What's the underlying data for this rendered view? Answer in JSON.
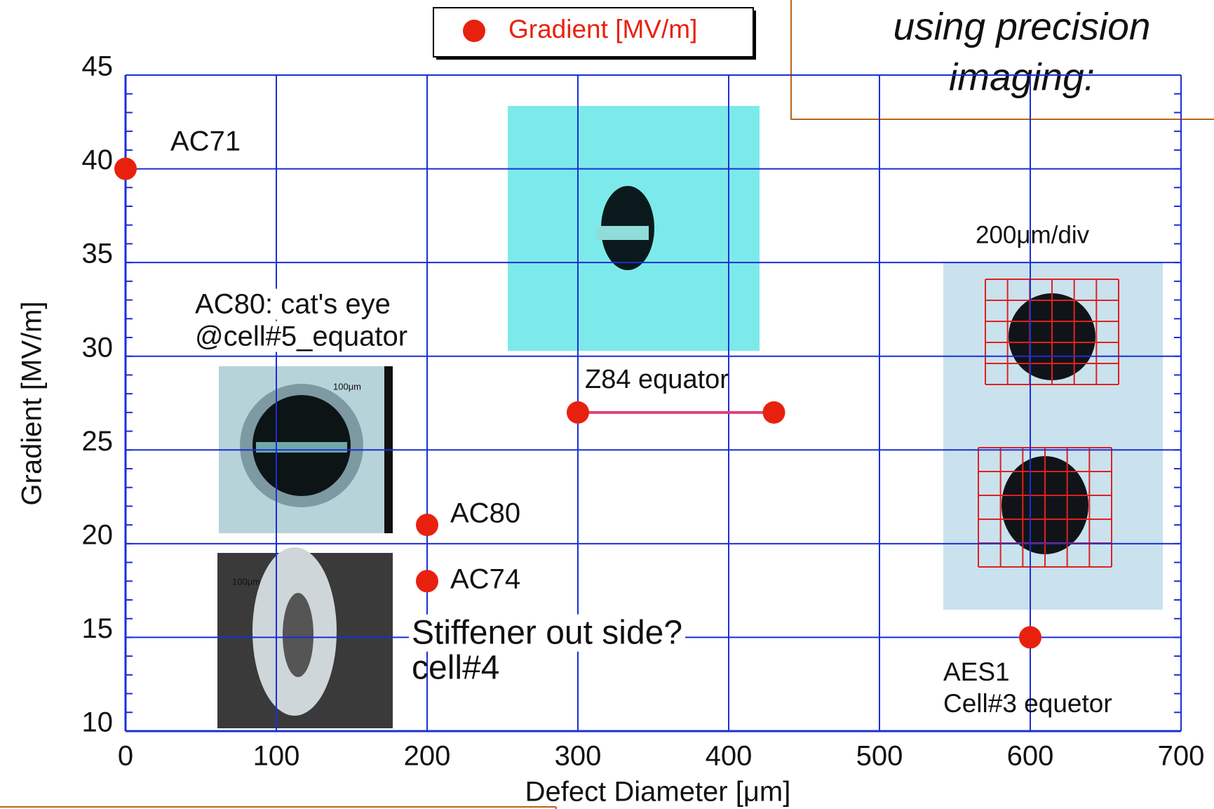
{
  "chart_data": {
    "type": "scatter",
    "xlabel": "Defect Diameter [μm]",
    "ylabel": "Gradient [MV/m]",
    "xlim": [
      0,
      700
    ],
    "ylim": [
      10,
      45
    ],
    "xticks": [
      0,
      100,
      200,
      300,
      400,
      500,
      600,
      700
    ],
    "yticks": [
      10,
      15,
      20,
      25,
      30,
      35,
      40,
      45
    ],
    "grid": true,
    "legend": "top",
    "series": [
      {
        "name": "Gradient [MV/m]",
        "color": "#e8210f",
        "x": [
          0,
          200,
          200,
          300,
          430,
          600
        ],
        "values": [
          40,
          21,
          18,
          27,
          27,
          15
        ]
      }
    ],
    "annotations": [
      "AC71",
      "AC80: cat's eye",
      "@cell#5_equator",
      "Z84 equator",
      "AC80",
      "AC74",
      "Stiffener out side?",
      "cell#4",
      "200μm/div",
      "AES1",
      "Cell#3 equetor",
      "100μm",
      "100μm"
    ],
    "callout": [
      "using precision",
      "imaging:"
    ]
  }
}
